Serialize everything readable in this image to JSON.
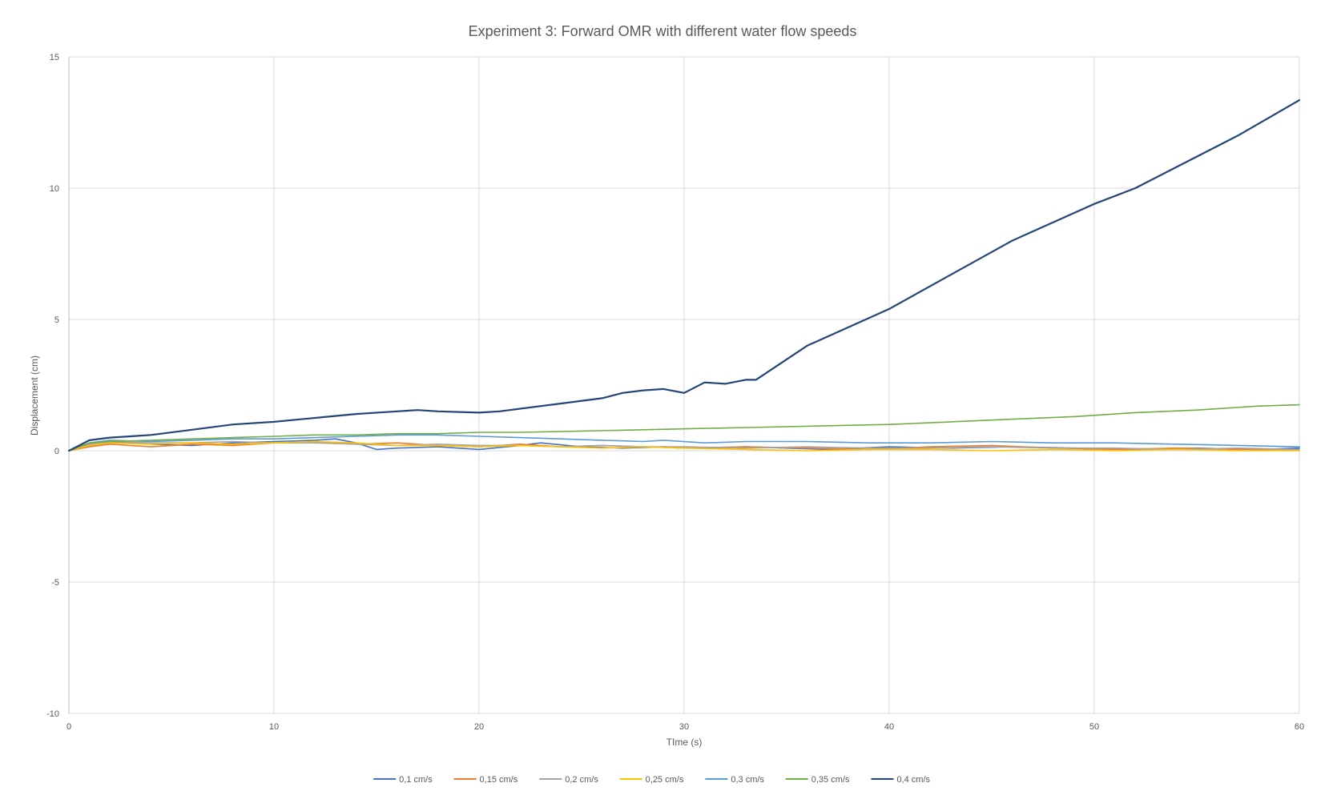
{
  "chart_data": {
    "type": "line",
    "title": "Experiment 3: Forward OMR with different water flow speeds",
    "xlabel": "TIme (s)",
    "ylabel": "Displacement (cm)",
    "xlim": [
      0,
      60
    ],
    "ylim": [
      -10,
      15
    ],
    "x_ticks": [
      0,
      10,
      20,
      30,
      40,
      50,
      60
    ],
    "y_ticks": [
      -10,
      -5,
      0,
      5,
      10,
      15
    ],
    "grid": true,
    "legend_position": "bottom",
    "series": [
      {
        "name": "0,1 cm/s",
        "color": "#4472C4",
        "x": [
          0,
          1,
          2,
          3,
          4,
          6,
          8,
          10,
          12,
          13,
          14,
          15,
          16,
          18,
          20,
          22,
          23,
          25,
          27,
          29,
          31,
          33,
          35,
          37,
          40,
          43,
          46,
          49,
          52,
          55,
          58,
          60
        ],
        "y": [
          0,
          0.2,
          0.3,
          0.3,
          0.25,
          0.2,
          0.3,
          0.35,
          0.4,
          0.45,
          0.3,
          0.05,
          0.1,
          0.15,
          0.05,
          0.2,
          0.3,
          0.15,
          0.1,
          0.15,
          0.1,
          0.15,
          0.1,
          0.05,
          0.15,
          0.1,
          0.15,
          0.1,
          0.05,
          0.1,
          0.05,
          0.1
        ]
      },
      {
        "name": "0,15 cm/s",
        "color": "#ED7D31",
        "x": [
          0,
          1,
          2,
          3,
          4,
          6,
          8,
          10,
          12,
          14,
          16,
          18,
          20,
          22,
          24,
          26,
          28,
          30,
          33,
          36,
          39,
          42,
          45,
          48,
          51,
          54,
          57,
          60
        ],
        "y": [
          0,
          0.15,
          0.25,
          0.2,
          0.15,
          0.25,
          0.2,
          0.3,
          0.35,
          0.25,
          0.3,
          0.2,
          0.15,
          0.25,
          0.15,
          0.2,
          0.15,
          0.1,
          0.15,
          0.1,
          0.05,
          0.15,
          0.2,
          0.1,
          0.05,
          0.1,
          0.05,
          0.05
        ]
      },
      {
        "name": "0,2 cm/s",
        "color": "#A5A5A5",
        "x": [
          0,
          1,
          2,
          4,
          6,
          8,
          10,
          12,
          14,
          16,
          18,
          20,
          22,
          24,
          26,
          28,
          30,
          33,
          36,
          39,
          42,
          45,
          48,
          51,
          54,
          57,
          60
        ],
        "y": [
          0,
          0.25,
          0.35,
          0.3,
          0.3,
          0.35,
          0.3,
          0.3,
          0.25,
          0.2,
          0.25,
          0.2,
          0.2,
          0.15,
          0.2,
          0.15,
          0.15,
          0.1,
          0.15,
          0.1,
          0.1,
          0.15,
          0.1,
          0.1,
          0.05,
          0.1,
          0.05
        ]
      },
      {
        "name": "0,25 cm/s",
        "color": "#FFC000",
        "x": [
          0,
          1,
          2,
          4,
          6,
          8,
          10,
          12,
          14,
          16,
          18,
          20,
          22,
          24,
          26,
          28,
          30,
          33,
          36,
          39,
          42,
          45,
          48,
          51,
          54,
          57,
          60
        ],
        "y": [
          0,
          0.2,
          0.3,
          0.25,
          0.3,
          0.25,
          0.3,
          0.35,
          0.3,
          0.2,
          0.2,
          0.15,
          0.2,
          0.15,
          0.1,
          0.15,
          0.1,
          0.05,
          0.0,
          0.05,
          0.05,
          0.0,
          0.05,
          0.0,
          0.05,
          0.0,
          0.0
        ]
      },
      {
        "name": "0,3 cm/s",
        "color": "#5B9BD5",
        "x": [
          0,
          1,
          2,
          4,
          6,
          8,
          10,
          12,
          14,
          16,
          18,
          20,
          22,
          24,
          26,
          28,
          29,
          31,
          33,
          36,
          39,
          42,
          45,
          48,
          51,
          54,
          57,
          60
        ],
        "y": [
          0,
          0.3,
          0.4,
          0.35,
          0.4,
          0.45,
          0.45,
          0.5,
          0.55,
          0.6,
          0.6,
          0.55,
          0.5,
          0.45,
          0.4,
          0.35,
          0.4,
          0.3,
          0.35,
          0.35,
          0.3,
          0.3,
          0.35,
          0.3,
          0.3,
          0.25,
          0.2,
          0.15
        ]
      },
      {
        "name": "0,35 cm/s",
        "color": "#70AD47",
        "x": [
          0,
          1,
          2,
          4,
          6,
          8,
          10,
          12,
          14,
          16,
          18,
          20,
          22,
          25,
          28,
          31,
          34,
          37,
          40,
          43,
          46,
          49,
          52,
          55,
          58,
          60
        ],
        "y": [
          0,
          0.3,
          0.35,
          0.4,
          0.45,
          0.5,
          0.55,
          0.6,
          0.6,
          0.65,
          0.65,
          0.7,
          0.7,
          0.75,
          0.8,
          0.85,
          0.9,
          0.95,
          1.0,
          1.1,
          1.2,
          1.3,
          1.45,
          1.55,
          1.7,
          1.75
        ]
      },
      {
        "name": "0,4 cm/s",
        "color": "#264478",
        "x": [
          0,
          1,
          2,
          3,
          4,
          6,
          8,
          10,
          12,
          14,
          16,
          17,
          18,
          20,
          21,
          22,
          24,
          26,
          27,
          28,
          29,
          30,
          31,
          32,
          33,
          33.5,
          36,
          40,
          43,
          46,
          50,
          52,
          55,
          57,
          60
        ],
        "y": [
          0,
          0.4,
          0.5,
          0.55,
          0.6,
          0.8,
          1.0,
          1.1,
          1.25,
          1.4,
          1.5,
          1.55,
          1.5,
          1.45,
          1.5,
          1.6,
          1.8,
          2.0,
          2.2,
          2.3,
          2.35,
          2.2,
          2.6,
          2.55,
          2.7,
          2.7,
          4.0,
          5.4,
          6.7,
          8.0,
          9.4,
          10.0,
          11.2,
          12.0,
          13.35
        ]
      }
    ]
  }
}
